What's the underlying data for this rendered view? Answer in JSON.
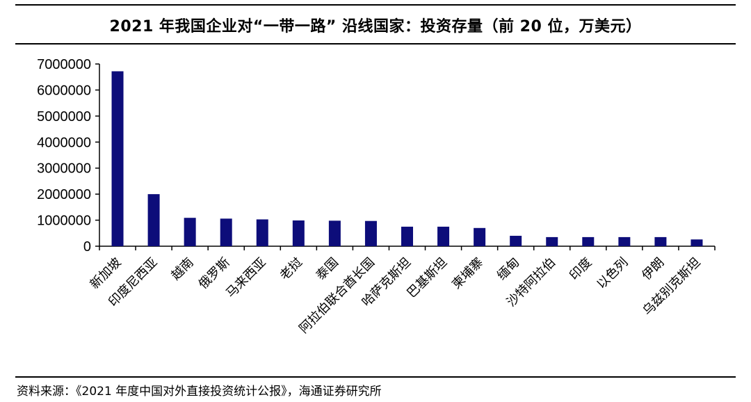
{
  "title": "2021 年我国企业对“一带一路” 沿线国家：投资存量（前 20 位，万美元）",
  "source": "资料来源：《2021 年度中国对外直接投资统计公报》，海通证券研究所",
  "colors": {
    "bar": "#0d0d7a",
    "axis": "#000000",
    "text": "#000000"
  },
  "chart_data": {
    "type": "bar",
    "title": "2021 年我国企业对“一带一路” 沿线国家：投资存量（前 20 位，万美元）",
    "xlabel": "",
    "ylabel": "",
    "ylim": [
      0,
      7000000
    ],
    "yticks": [
      0,
      1000000,
      2000000,
      3000000,
      4000000,
      5000000,
      6000000,
      7000000
    ],
    "ytick_labels": [
      "0",
      "1000000",
      "2000000",
      "3000000",
      "4000000",
      "5000000",
      "6000000",
      "7000000"
    ],
    "grid": false,
    "legend": "none",
    "categories": [
      "新加坡",
      "印度尼西亚",
      "越南",
      "俄罗斯",
      "马来西亚",
      "老挝",
      "泰国",
      "阿拉伯联合酋长国",
      "哈萨克斯坦",
      "巴基斯坦",
      "柬埔寨",
      "缅甸",
      "沙特阿拉伯",
      "印度",
      "以色列",
      "伊朗",
      "乌兹别克斯坦"
    ],
    "values": [
      6720000,
      2000000,
      1090000,
      1060000,
      1030000,
      990000,
      980000,
      970000,
      750000,
      750000,
      700000,
      400000,
      350000,
      350000,
      350000,
      350000,
      260000
    ]
  }
}
